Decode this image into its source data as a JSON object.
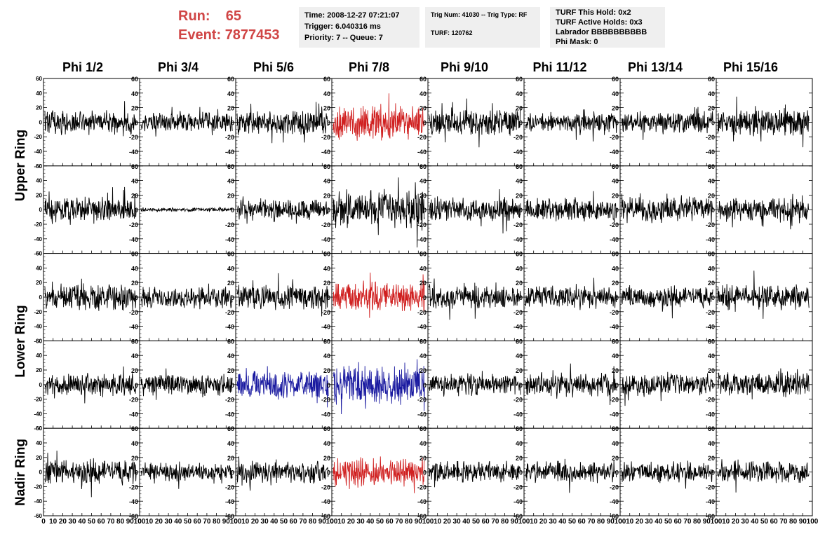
{
  "header": {
    "run_label": "Run:",
    "run_value": "65",
    "event_label": "Event:",
    "event_value": "7877453",
    "box1": [
      "Time: 2008-12-27 07:21:07",
      "Trigger: 6.040316 ms",
      "Priority: 7 -- Queue: 7"
    ],
    "box2": [
      "Trig Num: 41030 -- Trig Type: RF",
      "TURF: 120762"
    ],
    "box3": [
      "TURF This Hold: 0x2",
      "TURF Active Holds: 0x3",
      "Labrador BBBBBBBBBB",
      "Phi Mask: 0"
    ]
  },
  "colors": {
    "normal": "#000000",
    "triggered": "#d02020",
    "secondary": "#1a1aa0",
    "accent_text": "#d04545",
    "box_bg": "#efefef"
  },
  "columns": [
    "Phi 1/2",
    "Phi 3/4",
    "Phi 5/6",
    "Phi 7/8",
    "Phi 9/10",
    "Phi 11/12",
    "Phi 13/14",
    "Phi 15/16"
  ],
  "row_groups": [
    "Upper Ring",
    "Lower Ring",
    "Nadir Ring"
  ],
  "chart_data": {
    "type": "line",
    "description_of_grid": "5 rows x 8 columns of waveform panels; rows 1-2 Upper Ring, rows 3-4 Lower Ring, row 5 Nadir Ring",
    "x_ticks": [
      "0",
      "10",
      "20",
      "30",
      "40",
      "50",
      "60",
      "70",
      "80",
      "90",
      "100"
    ],
    "y_ticks": [
      "-60",
      "-40",
      "-20",
      "0",
      "20",
      "40",
      "60"
    ],
    "xlim": [
      0,
      100
    ],
    "ylim": [
      -60,
      60
    ],
    "panels": [
      [
        {
          "color": "normal",
          "amp": 13,
          "seed": 11
        },
        {
          "color": "normal",
          "amp": 10,
          "seed": 12
        },
        {
          "color": "normal",
          "amp": 13,
          "seed": 13
        },
        {
          "color": "triggered",
          "amp": 18,
          "seed": 14
        },
        {
          "color": "normal",
          "amp": 14,
          "seed": 15
        },
        {
          "color": "normal",
          "amp": 11,
          "seed": 16
        },
        {
          "color": "normal",
          "amp": 11,
          "seed": 17
        },
        {
          "color": "normal",
          "amp": 14,
          "seed": 18
        }
      ],
      [
        {
          "color": "normal",
          "amp": 13,
          "seed": 21
        },
        {
          "color": "normal",
          "amp": 2,
          "seed": 22
        },
        {
          "color": "normal",
          "amp": 11,
          "seed": 23
        },
        {
          "color": "normal",
          "amp": 20,
          "seed": 24
        },
        {
          "color": "normal",
          "amp": 12,
          "seed": 25
        },
        {
          "color": "normal",
          "amp": 12,
          "seed": 26
        },
        {
          "color": "normal",
          "amp": 13,
          "seed": 27
        },
        {
          "color": "normal",
          "amp": 13,
          "seed": 28
        }
      ],
      [
        {
          "color": "normal",
          "amp": 14,
          "seed": 31
        },
        {
          "color": "normal",
          "amp": 11,
          "seed": 32
        },
        {
          "color": "normal",
          "amp": 13,
          "seed": 33
        },
        {
          "color": "triggered",
          "amp": 15,
          "seed": 34
        },
        {
          "color": "normal",
          "amp": 12,
          "seed": 35
        },
        {
          "color": "normal",
          "amp": 11,
          "seed": 36
        },
        {
          "color": "normal",
          "amp": 11,
          "seed": 37
        },
        {
          "color": "normal",
          "amp": 13,
          "seed": 38
        }
      ],
      [
        {
          "color": "normal",
          "amp": 11,
          "seed": 41
        },
        {
          "color": "normal",
          "amp": 11,
          "seed": 42
        },
        {
          "color": "secondary",
          "amp": 14,
          "seed": 43
        },
        {
          "color": "secondary",
          "amp": 20,
          "seed": 44
        },
        {
          "color": "normal",
          "amp": 11,
          "seed": 45
        },
        {
          "color": "normal",
          "amp": 12,
          "seed": 46
        },
        {
          "color": "normal",
          "amp": 11,
          "seed": 47
        },
        {
          "color": "normal",
          "amp": 13,
          "seed": 48
        }
      ],
      [
        {
          "color": "normal",
          "amp": 13,
          "seed": 51
        },
        {
          "color": "normal",
          "amp": 9,
          "seed": 52
        },
        {
          "color": "normal",
          "amp": 12,
          "seed": 53
        },
        {
          "color": "triggered",
          "amp": 14,
          "seed": 54
        },
        {
          "color": "normal",
          "amp": 11,
          "seed": 55
        },
        {
          "color": "normal",
          "amp": 11,
          "seed": 56
        },
        {
          "color": "normal",
          "amp": 11,
          "seed": 57
        },
        {
          "color": "normal",
          "amp": 11,
          "seed": 58
        }
      ]
    ]
  }
}
